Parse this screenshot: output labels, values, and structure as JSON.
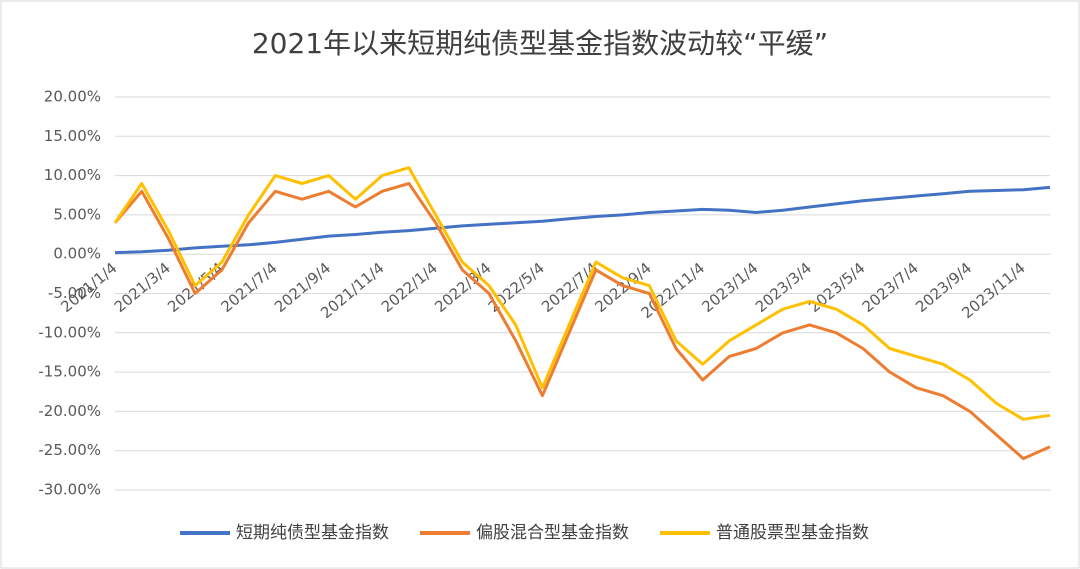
{
  "chart_data": {
    "type": "line",
    "title": "2021年以来短期纯债型基金指数波动较“平缓”",
    "categories": [
      "2021/1/4",
      null,
      "2021/3/4",
      null,
      "2021/5/4",
      null,
      "2021/7/4",
      null,
      "2021/9/4",
      null,
      "2021/11/4",
      null,
      "2022/1/4",
      null,
      "2022/3/4",
      null,
      "2022/5/4",
      null,
      "2022/7/4",
      null,
      "2022/9/4",
      null,
      "2022/11/4",
      null,
      "2023/1/4",
      null,
      "2023/3/4",
      null,
      "2023/5/4",
      null,
      "2023/7/4",
      null,
      "2023/9/4",
      null,
      "2023/11/4",
      null
    ],
    "series": [
      {
        "name": "短期纯债型基金指数",
        "color": "#4472c4",
        "values": [
          0.2,
          0.3,
          0.5,
          0.8,
          1.0,
          1.2,
          1.5,
          1.9,
          2.3,
          2.5,
          2.8,
          3.0,
          3.3,
          3.6,
          3.8,
          4.0,
          4.2,
          4.5,
          4.8,
          5.0,
          5.3,
          5.5,
          5.7,
          5.6,
          5.3,
          5.6,
          6.0,
          6.4,
          6.8,
          7.1,
          7.4,
          7.7,
          8.0,
          8.1,
          8.2,
          8.5
        ]
      },
      {
        "name": "偏股混合型基金指数",
        "color": "#ed7d31",
        "values": [
          4,
          8,
          2,
          -5,
          -2,
          4,
          8,
          7,
          8,
          6,
          8,
          9,
          4,
          -2,
          -5,
          -11,
          -18,
          -10,
          -2,
          -4,
          -5,
          -12,
          -16,
          -13,
          -12,
          -10,
          -9,
          -10,
          -12,
          -15,
          -17,
          -18,
          -20,
          -23,
          -26,
          -24.5
        ]
      },
      {
        "name": "普通股票型基金指数",
        "color": "#ffc000",
        "values": [
          4,
          9,
          3,
          -4,
          -1,
          5,
          10,
          9,
          10,
          7,
          10,
          11,
          5,
          -1,
          -4,
          -9,
          -17,
          -9,
          -1,
          -3,
          -4,
          -11,
          -14,
          -11,
          -9,
          -7,
          -6,
          -7,
          -9,
          -12,
          -13,
          -14,
          -16,
          -19,
          -21,
          -20.5
        ]
      }
    ],
    "ylim": [
      -30,
      20
    ],
    "yticks": [
      {
        "value": -30,
        "label": "-30.00%"
      },
      {
        "value": -25,
        "label": "-25.00%"
      },
      {
        "value": -20,
        "label": "-20.00%"
      },
      {
        "value": -15,
        "label": "-15.00%"
      },
      {
        "value": -10,
        "label": "-10.00%"
      },
      {
        "value": -5,
        "label": "-5.00%"
      },
      {
        "value": 0,
        "label": "0.00%"
      },
      {
        "value": 5,
        "label": "5.00%"
      },
      {
        "value": 10,
        "label": "10.00%"
      },
      {
        "value": 15,
        "label": "15.00%"
      },
      {
        "value": 20,
        "label": "20.00%"
      }
    ],
    "grid": true,
    "legend": "bottom"
  }
}
